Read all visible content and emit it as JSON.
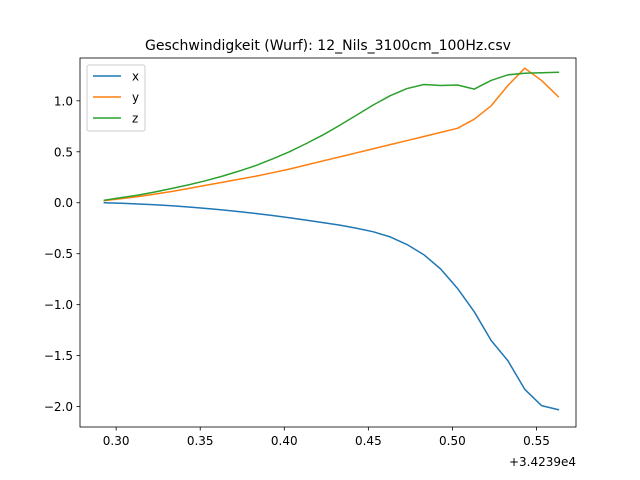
{
  "chart_data": {
    "type": "line",
    "title": "Geschwindigkeit (Wurf): 12_Nils_3100cm_100Hz.csv",
    "xlabel": "",
    "ylabel": "",
    "x_offset_label": "+3.4239e4",
    "xlim": [
      0.2785,
      0.5735
    ],
    "ylim": [
      -2.2,
      1.42
    ],
    "x_ticks": [
      0.3,
      0.35,
      0.4,
      0.45,
      0.5,
      0.55
    ],
    "x_tick_labels": [
      "0.30",
      "0.35",
      "0.40",
      "0.45",
      "0.50",
      "0.55"
    ],
    "y_ticks": [
      -2.0,
      -1.5,
      -1.0,
      -0.5,
      0.0,
      0.5,
      1.0
    ],
    "y_tick_labels": [
      "−2.0",
      "−1.5",
      "−1.0",
      "−0.5",
      "0.0",
      "0.5",
      "1.0"
    ],
    "grid": false,
    "legend_position": "top-left",
    "x": [
      0.293,
      0.303,
      0.313,
      0.323,
      0.333,
      0.343,
      0.353,
      0.363,
      0.373,
      0.383,
      0.393,
      0.403,
      0.413,
      0.423,
      0.433,
      0.443,
      0.453,
      0.463,
      0.473,
      0.483,
      0.493,
      0.503,
      0.513,
      0.523,
      0.533,
      0.543,
      0.553,
      0.563
    ],
    "series": [
      {
        "name": "x",
        "color": "#1f77b4",
        "values": [
          0.0,
          -0.005,
          -0.012,
          -0.02,
          -0.03,
          -0.042,
          -0.055,
          -0.07,
          -0.087,
          -0.105,
          -0.125,
          -0.147,
          -0.17,
          -0.195,
          -0.22,
          -0.25,
          -0.285,
          -0.335,
          -0.41,
          -0.51,
          -0.65,
          -0.84,
          -1.07,
          -1.35,
          -1.55,
          -1.83,
          -1.99,
          -2.03
        ]
      },
      {
        "name": "y",
        "color": "#ff7f0e",
        "values": [
          0.02,
          0.04,
          0.06,
          0.085,
          0.11,
          0.14,
          0.17,
          0.2,
          0.23,
          0.26,
          0.295,
          0.33,
          0.37,
          0.41,
          0.45,
          0.49,
          0.53,
          0.57,
          0.61,
          0.65,
          0.69,
          0.73,
          0.82,
          0.95,
          1.15,
          1.32,
          1.2,
          1.04
        ]
      },
      {
        "name": "z",
        "color": "#2ca02c",
        "values": [
          0.025,
          0.05,
          0.075,
          0.105,
          0.14,
          0.175,
          0.215,
          0.26,
          0.31,
          0.365,
          0.43,
          0.5,
          0.58,
          0.665,
          0.76,
          0.86,
          0.96,
          1.05,
          1.12,
          1.16,
          1.15,
          1.155,
          1.115,
          1.2,
          1.255,
          1.27,
          1.275,
          1.28
        ]
      }
    ]
  }
}
